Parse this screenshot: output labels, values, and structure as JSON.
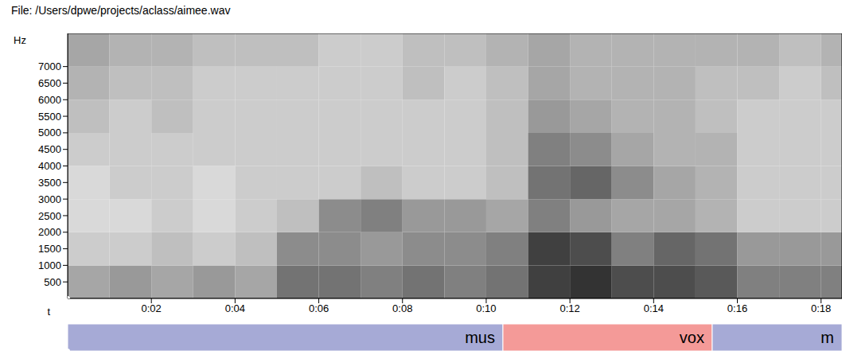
{
  "chart_data": {
    "type": "heatmap",
    "title": "File: /Users/dpwe/projects/aclass/aimee.wav",
    "x_label": "t",
    "y_label": "Hz",
    "xlim": [
      0,
      18.5
    ],
    "xticks": [
      {
        "value": 2,
        "label": "0:02"
      },
      {
        "value": 4,
        "label": "0:04"
      },
      {
        "value": 6,
        "label": "0:06"
      },
      {
        "value": 8,
        "label": "0:08"
      },
      {
        "value": 10,
        "label": "0:10"
      },
      {
        "value": 12,
        "label": "0:12"
      },
      {
        "value": 14,
        "label": "0:14"
      },
      {
        "value": 16,
        "label": "0:16"
      },
      {
        "value": 18,
        "label": "0:18"
      }
    ],
    "ylim": [
      0,
      8000
    ],
    "yticks": [
      500,
      1000,
      1500,
      2000,
      2500,
      3000,
      3500,
      4000,
      4500,
      5000,
      5500,
      6000,
      6500,
      7000
    ],
    "cell_times": [
      0,
      1,
      2,
      3,
      4,
      5,
      6,
      7,
      8,
      9,
      10,
      11,
      12,
      13,
      14,
      15,
      16,
      17,
      18,
      19
    ],
    "cell_freqs": [
      0,
      1000,
      2000,
      3000,
      4000,
      5000,
      6000,
      7000,
      8000
    ],
    "cells": [
      [
        0.35,
        0.4,
        0.35,
        0.4,
        0.35,
        0.55,
        0.55,
        0.5,
        0.55,
        0.5,
        0.55,
        0.75,
        0.8,
        0.7,
        0.7,
        0.65,
        0.5,
        0.5,
        0.5
      ],
      [
        0.2,
        0.2,
        0.25,
        0.2,
        0.25,
        0.45,
        0.45,
        0.4,
        0.45,
        0.45,
        0.5,
        0.75,
        0.7,
        0.5,
        0.6,
        0.55,
        0.4,
        0.4,
        0.4
      ],
      [
        0.15,
        0.15,
        0.2,
        0.15,
        0.2,
        0.25,
        0.45,
        0.5,
        0.4,
        0.4,
        0.35,
        0.5,
        0.4,
        0.35,
        0.35,
        0.3,
        0.2,
        0.2,
        0.2
      ],
      [
        0.15,
        0.2,
        0.2,
        0.15,
        0.2,
        0.2,
        0.2,
        0.25,
        0.2,
        0.2,
        0.25,
        0.55,
        0.6,
        0.45,
        0.35,
        0.3,
        0.2,
        0.2,
        0.2
      ],
      [
        0.2,
        0.2,
        0.2,
        0.2,
        0.2,
        0.2,
        0.2,
        0.2,
        0.2,
        0.2,
        0.25,
        0.5,
        0.45,
        0.35,
        0.3,
        0.3,
        0.2,
        0.2,
        0.2
      ],
      [
        0.25,
        0.2,
        0.25,
        0.2,
        0.2,
        0.2,
        0.2,
        0.2,
        0.2,
        0.2,
        0.25,
        0.4,
        0.35,
        0.3,
        0.3,
        0.25,
        0.2,
        0.2,
        0.2
      ],
      [
        0.3,
        0.25,
        0.25,
        0.2,
        0.2,
        0.2,
        0.2,
        0.2,
        0.25,
        0.2,
        0.25,
        0.35,
        0.3,
        0.3,
        0.3,
        0.25,
        0.25,
        0.2,
        0.25
      ],
      [
        0.35,
        0.3,
        0.3,
        0.25,
        0.25,
        0.25,
        0.2,
        0.2,
        0.25,
        0.25,
        0.3,
        0.35,
        0.3,
        0.3,
        0.3,
        0.3,
        0.3,
        0.25,
        0.3
      ]
    ],
    "segments": [
      {
        "label": "mus",
        "start": 0,
        "end": 10.4,
        "color": "#a6aad6"
      },
      {
        "label": "vox",
        "start": 10.4,
        "end": 15.4,
        "color": "#f49a98"
      },
      {
        "label": "m",
        "start": 15.4,
        "end": 18.5,
        "color": "#a6aad6"
      }
    ]
  }
}
